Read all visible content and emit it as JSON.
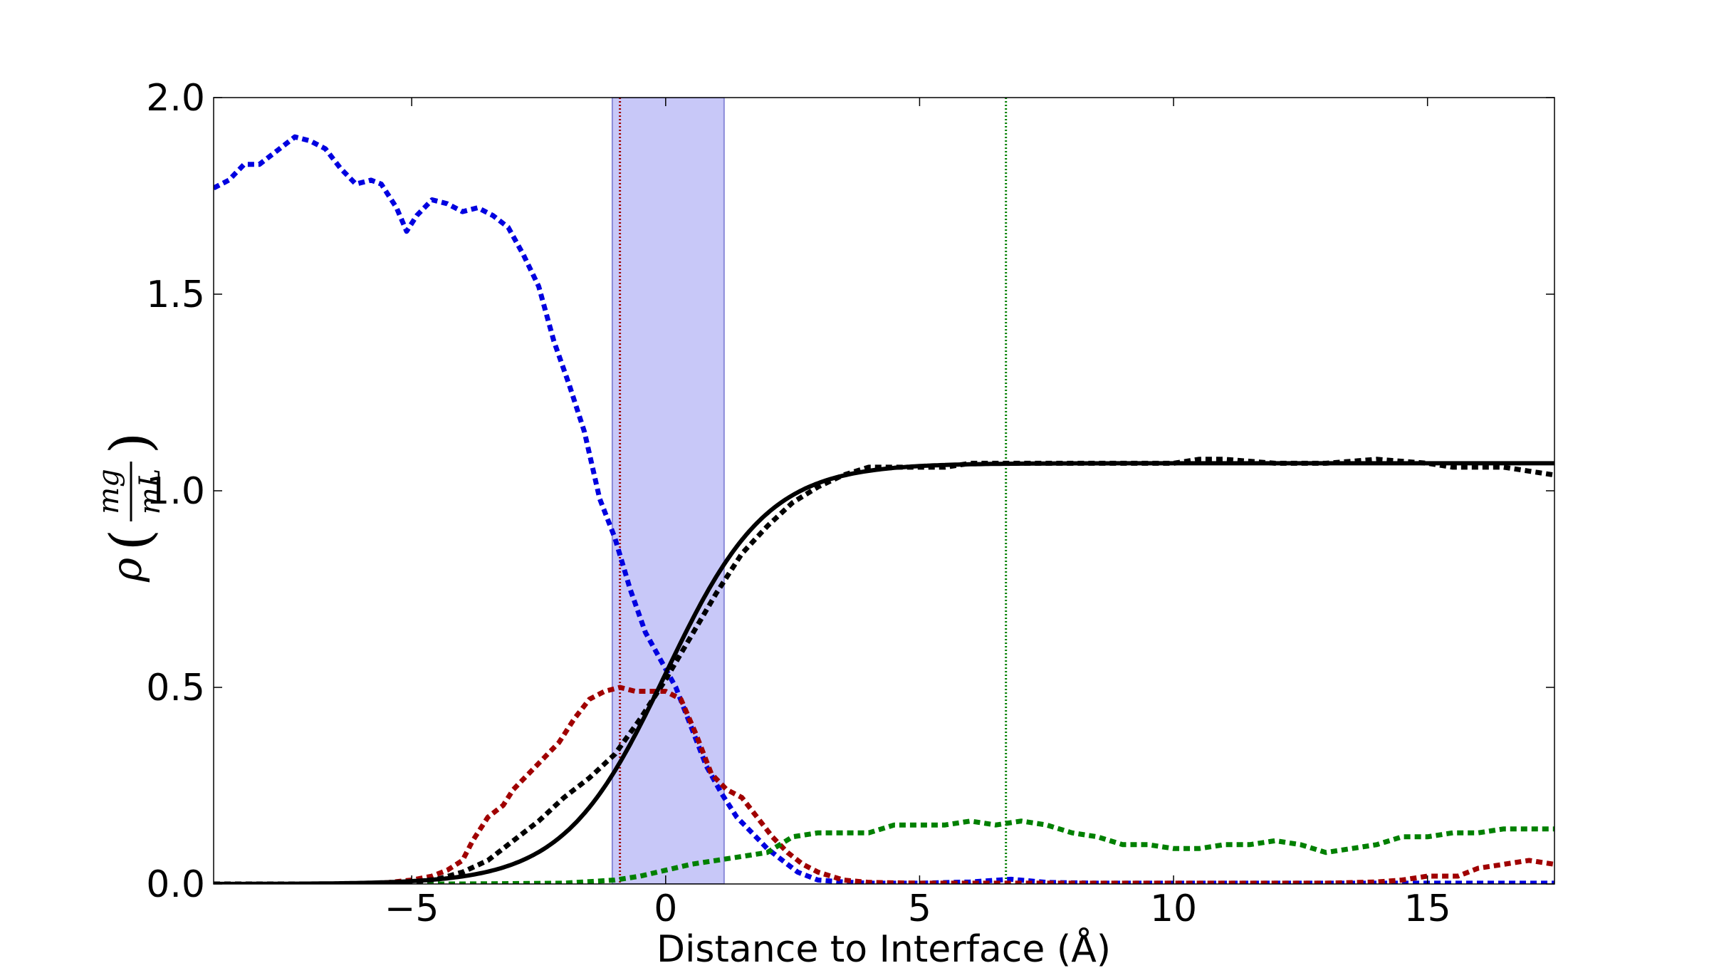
{
  "chart_data": {
    "type": "line",
    "title": "",
    "xlabel": "Distance to Interface (Å)",
    "ylabel": "ρ (mg/mL)",
    "ylabel_parts": {
      "symbol": "ρ",
      "numerator": "mg",
      "denominator": "mL"
    },
    "xlim": [
      -8.9,
      17.5
    ],
    "ylim": [
      0.0,
      2.0
    ],
    "x_ticks": [
      -5,
      0,
      5,
      10,
      15
    ],
    "x_tick_labels": [
      "−5",
      "0",
      "5",
      "10",
      "15"
    ],
    "y_ticks": [
      0.0,
      0.5,
      1.0,
      1.5,
      2.0
    ],
    "y_tick_labels": [
      "0.0",
      "0.5",
      "1.0",
      "1.5",
      "2.0"
    ],
    "grid": false,
    "legend": "none",
    "shaded_band": {
      "x": [
        -1.05,
        1.15
      ],
      "color": "#c8c8f8",
      "edge": "#8a8ad8"
    },
    "vlines": [
      {
        "x": -0.9,
        "color": "#a00000",
        "style": "dotted"
      },
      {
        "x": 6.7,
        "color": "#008000",
        "style": "dotted"
      }
    ],
    "series": [
      {
        "color": "#0000e0",
        "style": "dashed",
        "width": 7,
        "points": [
          [
            -8.9,
            1.77
          ],
          [
            -8.6,
            1.79
          ],
          [
            -8.3,
            1.83
          ],
          [
            -8.0,
            1.83
          ],
          [
            -7.7,
            1.86
          ],
          [
            -7.3,
            1.9
          ],
          [
            -7.0,
            1.89
          ],
          [
            -6.7,
            1.87
          ],
          [
            -6.4,
            1.82
          ],
          [
            -6.1,
            1.78
          ],
          [
            -5.8,
            1.79
          ],
          [
            -5.6,
            1.78
          ],
          [
            -5.3,
            1.72
          ],
          [
            -5.1,
            1.66
          ],
          [
            -4.9,
            1.7
          ],
          [
            -4.6,
            1.74
          ],
          [
            -4.3,
            1.73
          ],
          [
            -4.0,
            1.71
          ],
          [
            -3.7,
            1.72
          ],
          [
            -3.4,
            1.7
          ],
          [
            -3.1,
            1.67
          ],
          [
            -2.8,
            1.6
          ],
          [
            -2.5,
            1.52
          ],
          [
            -2.2,
            1.38
          ],
          [
            -1.9,
            1.27
          ],
          [
            -1.6,
            1.15
          ],
          [
            -1.3,
            0.98
          ],
          [
            -1.0,
            0.88
          ],
          [
            -0.7,
            0.75
          ],
          [
            -0.4,
            0.64
          ],
          [
            -0.1,
            0.57
          ],
          [
            0.2,
            0.5
          ],
          [
            0.5,
            0.4
          ],
          [
            0.8,
            0.3
          ],
          [
            1.1,
            0.23
          ],
          [
            1.4,
            0.17
          ],
          [
            1.7,
            0.13
          ],
          [
            2.0,
            0.09
          ],
          [
            2.3,
            0.06
          ],
          [
            2.6,
            0.03
          ],
          [
            3.0,
            0.01
          ],
          [
            3.5,
            0.005
          ],
          [
            4.0,
            0.002
          ],
          [
            5.0,
            0.002
          ],
          [
            6.0,
            0.005
          ],
          [
            6.8,
            0.012
          ],
          [
            7.5,
            0.004
          ],
          [
            8.5,
            0.002
          ],
          [
            10.0,
            0.002
          ],
          [
            12.0,
            0.002
          ],
          [
            14.0,
            0.002
          ],
          [
            16.0,
            0.002
          ],
          [
            17.5,
            0.002
          ]
        ]
      },
      {
        "color": "#a00000",
        "style": "dashed",
        "width": 7,
        "points": [
          [
            -8.9,
            0.0
          ],
          [
            -7.0,
            0.0
          ],
          [
            -6.0,
            0.0
          ],
          [
            -5.5,
            0.003
          ],
          [
            -5.0,
            0.01
          ],
          [
            -4.6,
            0.02
          ],
          [
            -4.3,
            0.035
          ],
          [
            -4.0,
            0.06
          ],
          [
            -3.8,
            0.11
          ],
          [
            -3.5,
            0.17
          ],
          [
            -3.2,
            0.2
          ],
          [
            -3.0,
            0.24
          ],
          [
            -2.7,
            0.28
          ],
          [
            -2.4,
            0.32
          ],
          [
            -2.1,
            0.36
          ],
          [
            -1.8,
            0.42
          ],
          [
            -1.5,
            0.47
          ],
          [
            -1.2,
            0.49
          ],
          [
            -0.9,
            0.5
          ],
          [
            -0.6,
            0.49
          ],
          [
            -0.3,
            0.49
          ],
          [
            0.0,
            0.49
          ],
          [
            0.3,
            0.47
          ],
          [
            0.6,
            0.38
          ],
          [
            0.9,
            0.28
          ],
          [
            1.2,
            0.24
          ],
          [
            1.5,
            0.22
          ],
          [
            1.8,
            0.17
          ],
          [
            2.1,
            0.12
          ],
          [
            2.4,
            0.08
          ],
          [
            2.7,
            0.05
          ],
          [
            3.0,
            0.03
          ],
          [
            3.5,
            0.01
          ],
          [
            4.0,
            0.004
          ],
          [
            5.0,
            0.002
          ],
          [
            7.0,
            0.002
          ],
          [
            9.0,
            0.002
          ],
          [
            11.0,
            0.002
          ],
          [
            13.0,
            0.002
          ],
          [
            14.0,
            0.005
          ],
          [
            14.5,
            0.01
          ],
          [
            15.0,
            0.02
          ],
          [
            15.6,
            0.02
          ],
          [
            16.0,
            0.04
          ],
          [
            16.5,
            0.05
          ],
          [
            17.0,
            0.06
          ],
          [
            17.5,
            0.05
          ]
        ]
      },
      {
        "color": "#008000",
        "style": "dashed",
        "width": 7,
        "points": [
          [
            -8.9,
            0.0
          ],
          [
            -4.0,
            0.0
          ],
          [
            -2.0,
            0.002
          ],
          [
            -1.0,
            0.01
          ],
          [
            -0.5,
            0.02
          ],
          [
            0.0,
            0.035
          ],
          [
            0.5,
            0.05
          ],
          [
            1.0,
            0.06
          ],
          [
            1.5,
            0.07
          ],
          [
            2.0,
            0.08
          ],
          [
            2.5,
            0.12
          ],
          [
            3.0,
            0.13
          ],
          [
            3.5,
            0.13
          ],
          [
            4.0,
            0.13
          ],
          [
            4.5,
            0.15
          ],
          [
            5.0,
            0.15
          ],
          [
            5.5,
            0.15
          ],
          [
            6.0,
            0.16
          ],
          [
            6.5,
            0.15
          ],
          [
            7.0,
            0.16
          ],
          [
            7.5,
            0.15
          ],
          [
            8.0,
            0.13
          ],
          [
            8.5,
            0.12
          ],
          [
            9.0,
            0.1
          ],
          [
            9.5,
            0.1
          ],
          [
            10.0,
            0.09
          ],
          [
            10.5,
            0.09
          ],
          [
            11.0,
            0.1
          ],
          [
            11.5,
            0.1
          ],
          [
            12.0,
            0.11
          ],
          [
            12.5,
            0.1
          ],
          [
            13.0,
            0.08
          ],
          [
            13.5,
            0.09
          ],
          [
            14.0,
            0.1
          ],
          [
            14.5,
            0.12
          ],
          [
            15.0,
            0.12
          ],
          [
            15.5,
            0.13
          ],
          [
            16.0,
            0.13
          ],
          [
            16.5,
            0.14
          ],
          [
            17.0,
            0.14
          ],
          [
            17.5,
            0.14
          ]
        ]
      },
      {
        "color": "#000000",
        "style": "dashed",
        "width": 7,
        "points": [
          [
            -8.9,
            0.0
          ],
          [
            -7.0,
            0.0
          ],
          [
            -6.0,
            0.0
          ],
          [
            -5.0,
            0.005
          ],
          [
            -4.5,
            0.012
          ],
          [
            -4.0,
            0.03
          ],
          [
            -3.5,
            0.06
          ],
          [
            -3.0,
            0.11
          ],
          [
            -2.5,
            0.16
          ],
          [
            -2.0,
            0.22
          ],
          [
            -1.5,
            0.27
          ],
          [
            -1.0,
            0.33
          ],
          [
            -0.5,
            0.42
          ],
          [
            0.0,
            0.52
          ],
          [
            0.5,
            0.63
          ],
          [
            1.0,
            0.74
          ],
          [
            1.5,
            0.84
          ],
          [
            2.0,
            0.91
          ],
          [
            2.5,
            0.97
          ],
          [
            3.0,
            1.01
          ],
          [
            3.5,
            1.04
          ],
          [
            4.0,
            1.06
          ],
          [
            4.5,
            1.06
          ],
          [
            5.0,
            1.06
          ],
          [
            5.5,
            1.06
          ],
          [
            6.0,
            1.07
          ],
          [
            6.5,
            1.07
          ],
          [
            7.0,
            1.07
          ],
          [
            7.5,
            1.07
          ],
          [
            8.0,
            1.07
          ],
          [
            9.0,
            1.07
          ],
          [
            10.0,
            1.07
          ],
          [
            10.5,
            1.08
          ],
          [
            11.0,
            1.08
          ],
          [
            12.0,
            1.07
          ],
          [
            13.0,
            1.07
          ],
          [
            14.0,
            1.08
          ],
          [
            15.0,
            1.07
          ],
          [
            15.5,
            1.06
          ],
          [
            16.0,
            1.06
          ],
          [
            16.5,
            1.06
          ],
          [
            17.0,
            1.05
          ],
          [
            17.5,
            1.04
          ]
        ]
      },
      {
        "color": "#000000",
        "style": "solid",
        "width": 6,
        "fit": {
          "a": 1.07,
          "x0": 0.0,
          "w": 1.0
        }
      }
    ]
  }
}
